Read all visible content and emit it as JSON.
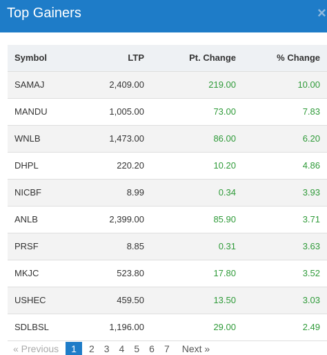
{
  "header": {
    "title": "Top Gainers",
    "close_glyph": "×"
  },
  "table": {
    "columns": [
      "Symbol",
      "LTP",
      "Pt. Change",
      "% Change"
    ],
    "rows": [
      {
        "symbol": "SAMAJ",
        "ltp": "2,409.00",
        "pt": "219.00",
        "pct": "10.00"
      },
      {
        "symbol": "MANDU",
        "ltp": "1,005.00",
        "pt": "73.00",
        "pct": "7.83"
      },
      {
        "symbol": "WNLB",
        "ltp": "1,473.00",
        "pt": "86.00",
        "pct": "6.20"
      },
      {
        "symbol": "DHPL",
        "ltp": "220.20",
        "pt": "10.20",
        "pct": "4.86"
      },
      {
        "symbol": "NICBF",
        "ltp": "8.99",
        "pt": "0.34",
        "pct": "3.93"
      },
      {
        "symbol": "ANLB",
        "ltp": "2,399.00",
        "pt": "85.90",
        "pct": "3.71"
      },
      {
        "symbol": "PRSF",
        "ltp": "8.85",
        "pt": "0.31",
        "pct": "3.63"
      },
      {
        "symbol": "MKJC",
        "ltp": "523.80",
        "pt": "17.80",
        "pct": "3.52"
      },
      {
        "symbol": "USHEC",
        "ltp": "459.50",
        "pt": "13.50",
        "pct": "3.03"
      },
      {
        "symbol": "SDLBSL",
        "ltp": "1,196.00",
        "pt": "29.00",
        "pct": "2.49"
      }
    ]
  },
  "pager": {
    "prev_label": "« Previous",
    "next_label": "Next »",
    "pages": [
      "1",
      "2",
      "3",
      "4",
      "5",
      "6",
      "7"
    ],
    "current": "1"
  },
  "colors": {
    "header_bg": "#1e7cc8",
    "gain_green": "#2e9a38",
    "active_page": "#1e7cc8"
  }
}
